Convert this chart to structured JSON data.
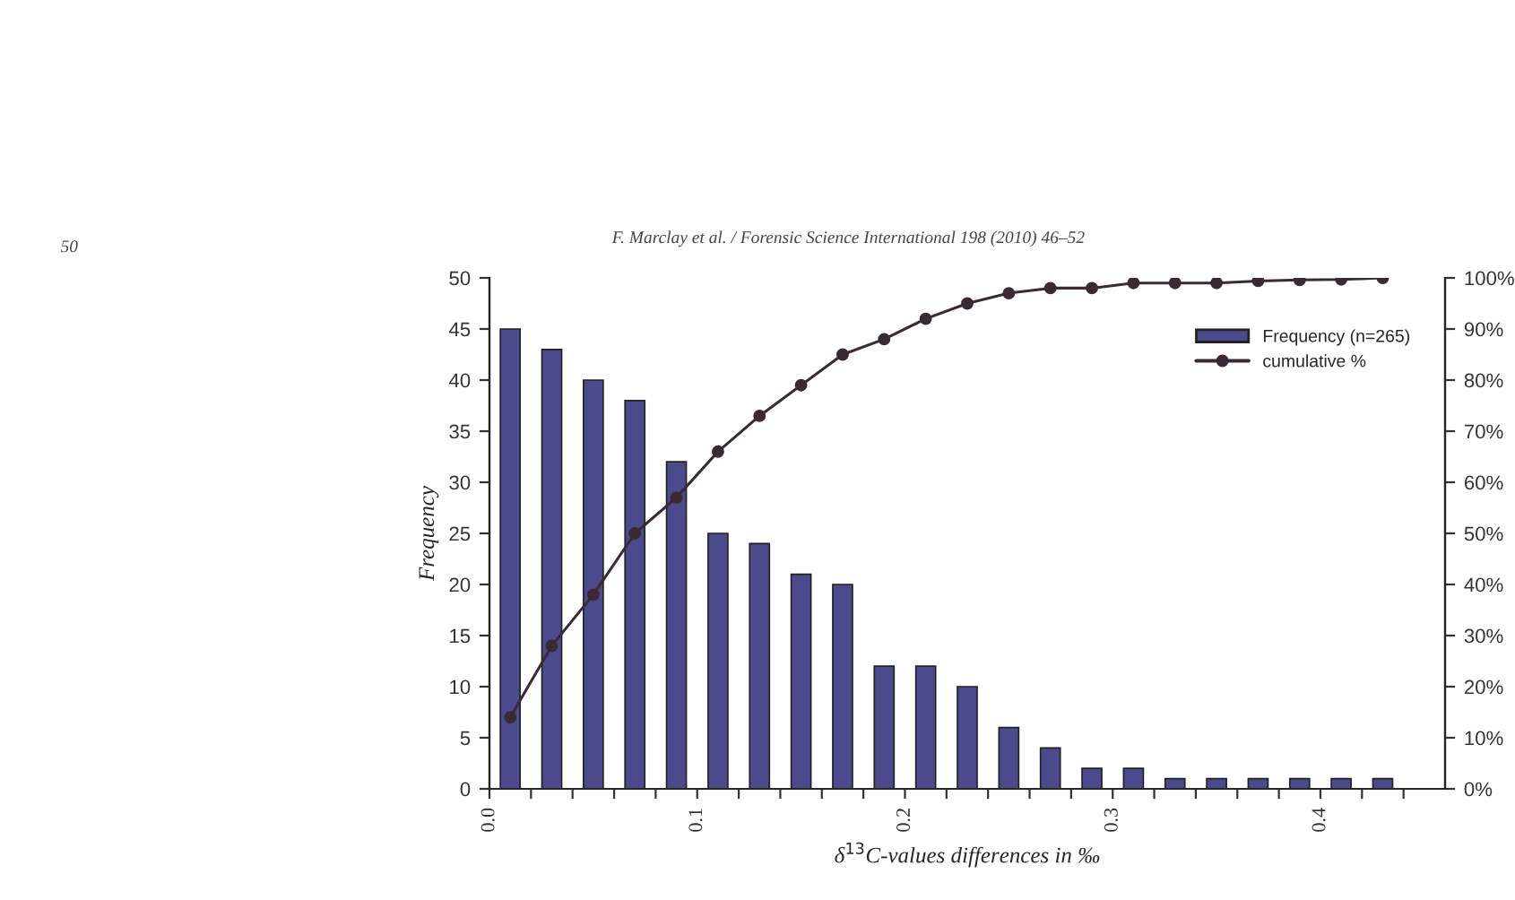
{
  "chart_data": {
    "type": "bar",
    "annotations": [
      "50",
      "F. Marclay et al. / Forensic Science International 198 (2010) 46–52"
    ],
    "xlabel": "δ$^{13}$C-values differences in ‰",
    "ylabel": "Frequency",
    "x": [
      0.01,
      0.03,
      0.05,
      0.07,
      0.09,
      0.11,
      0.13,
      0.15,
      0.17,
      0.19,
      0.21,
      0.23,
      0.25,
      0.27,
      0.29,
      0.31,
      0.33,
      0.35,
      0.37,
      0.39,
      0.41,
      0.43
    ],
    "series": [
      {
        "name": "Frequency (n=265)",
        "color": "#4b4a8c",
        "values": [
          45,
          43,
          40,
          38,
          32,
          25,
          24,
          21,
          20,
          12,
          12,
          10,
          6,
          4,
          2,
          2,
          1,
          1,
          1,
          1,
          1,
          1
        ]
      },
      {
        "name": "cumulative %",
        "type": "line",
        "axis": "y2",
        "color": "#3a2a34",
        "marker": "circle",
        "line_style": "solid",
        "values": [
          14,
          28,
          38,
          50,
          57,
          66,
          73,
          79,
          85,
          88,
          92,
          95,
          97,
          98,
          98,
          99,
          99,
          99,
          99.4,
          99.6,
          99.7,
          100
        ]
      }
    ],
    "xlim": [
      0,
      0.46
    ],
    "xticks": [
      {
        "value": 0,
        "label": "0.0"
      },
      {
        "value": 0.02,
        "label": null
      },
      {
        "value": 0.04,
        "label": null
      },
      {
        "value": 0.06,
        "label": null
      },
      {
        "value": 0.08,
        "label": null
      },
      {
        "value": 0.1,
        "label": "0.1"
      },
      {
        "value": 0.12,
        "label": null
      },
      {
        "value": 0.14,
        "label": null
      },
      {
        "value": 0.16,
        "label": null
      },
      {
        "value": 0.18,
        "label": null
      },
      {
        "value": 0.2,
        "label": "0.2"
      },
      {
        "value": 0.22,
        "label": null
      },
      {
        "value": 0.24,
        "label": null
      },
      {
        "value": 0.26,
        "label": null
      },
      {
        "value": 0.28,
        "label": null
      },
      {
        "value": 0.3,
        "label": "0.3"
      },
      {
        "value": 0.32,
        "label": null
      },
      {
        "value": 0.34,
        "label": null
      },
      {
        "value": 0.36,
        "label": null
      },
      {
        "value": 0.38,
        "label": null
      },
      {
        "value": 0.4,
        "label": "0.4"
      },
      {
        "value": 0.42,
        "label": null
      },
      {
        "value": 0.44,
        "label": null
      }
    ],
    "ylim": [
      0,
      50
    ],
    "yticks": [
      0,
      5,
      10,
      15,
      20,
      25,
      30,
      35,
      40,
      45,
      50
    ],
    "y2lim": [
      0,
      100
    ],
    "y2ticks": [
      {
        "value": 0,
        "label": "0%"
      },
      {
        "value": 10,
        "label": "10%"
      },
      {
        "value": 20,
        "label": "20%"
      },
      {
        "value": 30,
        "label": "30%"
      },
      {
        "value": 40,
        "label": "40%"
      },
      {
        "value": 50,
        "label": "50%"
      },
      {
        "value": 60,
        "label": "60%"
      },
      {
        "value": 70,
        "label": "70%"
      },
      {
        "value": 80,
        "label": "80%"
      },
      {
        "value": 90,
        "label": "90%"
      },
      {
        "value": 100,
        "label": "100%"
      }
    ],
    "grid": false,
    "legend": "top right"
  }
}
